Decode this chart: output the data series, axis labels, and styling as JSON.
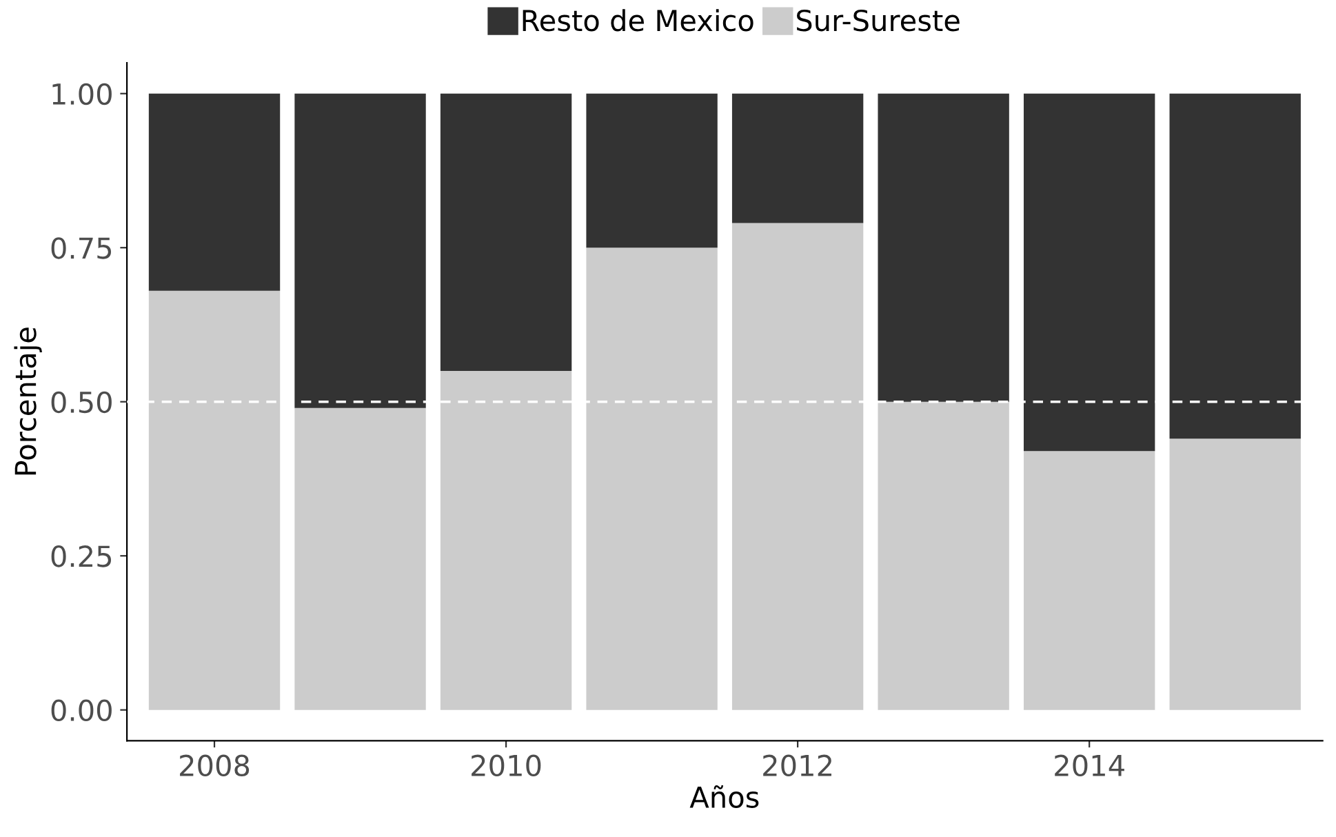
{
  "chart_data": {
    "type": "bar",
    "stacked": true,
    "xlabel": "Años",
    "ylabel": "Porcentaje",
    "x": [
      2008,
      2009,
      2010,
      2011,
      2012,
      2013,
      2014,
      2015
    ],
    "xlim": [
      2007.4,
      2015.6
    ],
    "xticks": [
      2008,
      2010,
      2012,
      2014
    ],
    "ylim": [
      -0.05,
      1.05
    ],
    "yticks": [
      {
        "value": 0,
        "label": "0.00"
      },
      {
        "value": 0.25,
        "label": "0.25"
      },
      {
        "value": 0.5,
        "label": "0.50"
      },
      {
        "value": 0.75,
        "label": "0.75"
      },
      {
        "value": 1,
        "label": "1.00"
      }
    ],
    "series": [
      {
        "name": "Sur-Sureste",
        "color": "#cccccc",
        "values": [
          0.68,
          0.49,
          0.55,
          0.75,
          0.79,
          0.5,
          0.42,
          0.44
        ]
      },
      {
        "name": "Resto de Mexico",
        "color": "#333333",
        "values": [
          0.32,
          0.51,
          0.45,
          0.25,
          0.21,
          0.5,
          0.58,
          0.56
        ]
      }
    ],
    "ref_lines": [
      {
        "axis": "y",
        "value": 0.5,
        "color": "#ffffff",
        "line_style": "dashed"
      }
    ],
    "legend": "top",
    "grid": false
  }
}
